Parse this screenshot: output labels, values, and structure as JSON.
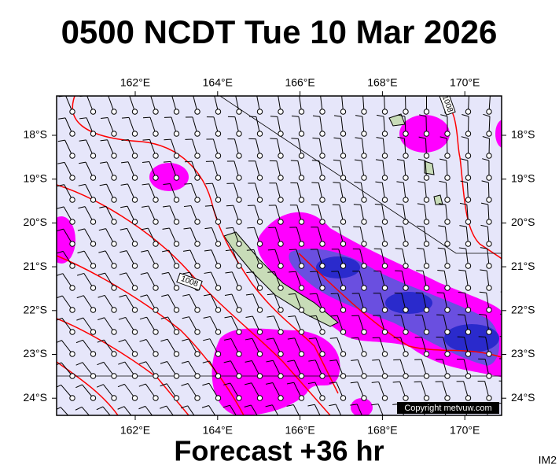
{
  "header": {
    "title": "0500 NCDT Tue 10 Mar 2026"
  },
  "map": {
    "lon_labels": [
      "162°E",
      "164°E",
      "166°E",
      "168°E",
      "170°E"
    ],
    "lat_labels": [
      "18°S",
      "19°S",
      "20°S",
      "21°S",
      "22°S",
      "23°S",
      "24°S"
    ],
    "contour_labels": [
      "1008",
      "1008"
    ],
    "copyright": "Copyright metvuw.com"
  },
  "footer": {
    "forecast": "Forecast +36 hr",
    "image_id": "IM2"
  }
}
